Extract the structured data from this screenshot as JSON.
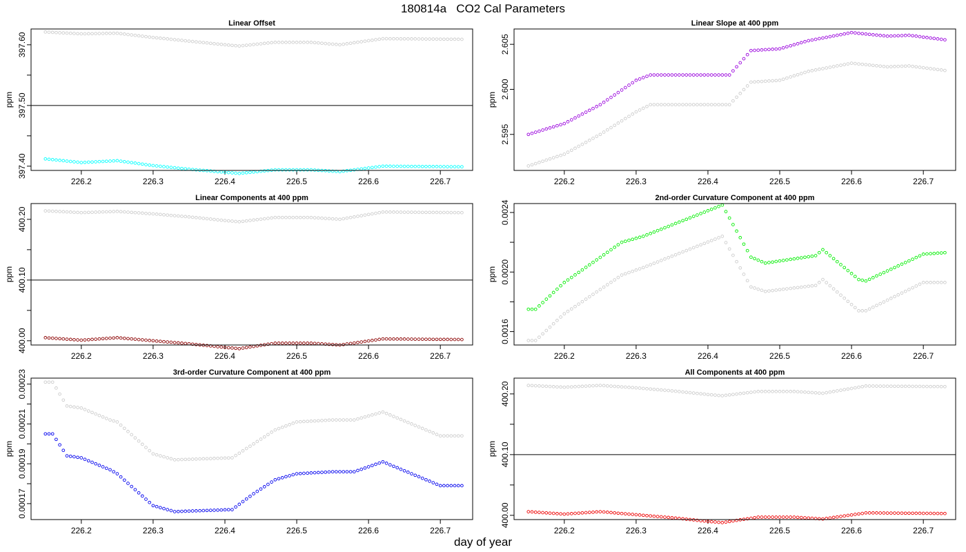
{
  "figure": {
    "title": "180814a   CO2 Cal Parameters",
    "xlabel": "day of year"
  },
  "chart_data": [
    {
      "type": "scatter",
      "title": "Linear Offset",
      "xlabel": "",
      "ylabel": "ppm",
      "xlim": [
        226.13,
        226.745
      ],
      "ylim": [
        397.393,
        397.626
      ],
      "xticks": [
        "226.2",
        "226.3",
        "226.4",
        "226.5",
        "226.6",
        "226.7"
      ],
      "yticks": [
        397.4,
        397.45,
        397.5,
        397.55,
        397.6
      ],
      "yticklabels": [
        "397.40",
        "",
        "397.50",
        "",
        "397.60"
      ],
      "hline": 397.5,
      "series": [
        {
          "color": "#cccccc",
          "x": [
            226.15,
            226.2,
            226.25,
            226.3,
            226.35,
            226.4,
            226.42,
            226.47,
            226.52,
            226.56,
            226.62,
            226.73
          ],
          "y": [
            397.621,
            397.618,
            397.619,
            397.612,
            397.606,
            397.6,
            397.598,
            397.604,
            397.604,
            397.6,
            397.61,
            397.609
          ]
        },
        {
          "color": "#00ffff",
          "x": [
            226.15,
            226.2,
            226.25,
            226.3,
            226.35,
            226.4,
            226.42,
            226.47,
            226.52,
            226.56,
            226.62,
            226.73
          ],
          "y": [
            397.412,
            397.406,
            397.409,
            397.401,
            397.395,
            397.39,
            397.388,
            397.394,
            397.394,
            397.391,
            397.4,
            397.399
          ]
        }
      ]
    },
    {
      "type": "scatter",
      "title": "Linear Slope at 400 ppm",
      "xlabel": "",
      "ylabel": "ppm",
      "xlim": [
        226.13,
        226.745
      ],
      "ylim": [
        2.591,
        2.6067
      ],
      "xticks": [
        "226.2",
        "226.3",
        "226.4",
        "226.5",
        "226.6",
        "226.7"
      ],
      "yticks": [
        2.595,
        2.6,
        2.605
      ],
      "yticklabels": [
        "2.595",
        "2.600",
        "2.605"
      ],
      "series": [
        {
          "color": "#cccccc",
          "x": [
            226.15,
            226.2,
            226.25,
            226.3,
            226.32,
            226.43,
            226.46,
            226.5,
            226.54,
            226.6,
            226.65,
            226.68,
            226.73
          ],
          "y": [
            2.5915,
            2.5928,
            2.595,
            2.5975,
            2.5983,
            2.5983,
            2.6008,
            2.601,
            2.602,
            2.6029,
            2.6025,
            2.6026,
            2.6021
          ]
        },
        {
          "color": "#9900dd",
          "x": [
            226.15,
            226.2,
            226.25,
            226.3,
            226.32,
            226.43,
            226.46,
            226.5,
            226.54,
            226.6,
            226.65,
            226.68,
            226.73
          ],
          "y": [
            2.595,
            2.5962,
            2.5983,
            2.601,
            2.6016,
            2.6016,
            2.6043,
            2.6045,
            2.6054,
            2.6063,
            2.6059,
            2.606,
            2.6055
          ]
        }
      ]
    },
    {
      "type": "scatter",
      "title": "Linear Components at 400 ppm",
      "xlabel": "",
      "ylabel": "ppm",
      "xlim": [
        226.13,
        226.745
      ],
      "ylim": [
        399.993,
        400.226
      ],
      "xticks": [
        "226.2",
        "226.3",
        "226.4",
        "226.5",
        "226.6",
        "226.7"
      ],
      "yticks": [
        400.0,
        400.05,
        400.1,
        400.15,
        400.2
      ],
      "yticklabels": [
        "400.00",
        "",
        "400.10",
        "",
        "400.20"
      ],
      "hline": 400.1,
      "series": [
        {
          "color": "#cccccc",
          "x": [
            226.15,
            226.2,
            226.25,
            226.3,
            226.35,
            226.4,
            226.42,
            226.47,
            226.52,
            226.56,
            226.62,
            226.73
          ],
          "y": [
            400.214,
            400.211,
            400.213,
            400.209,
            400.204,
            400.198,
            400.196,
            400.203,
            400.203,
            400.2,
            400.212,
            400.211
          ]
        },
        {
          "color": "#8b0000",
          "x": [
            226.15,
            226.2,
            226.25,
            226.3,
            226.35,
            226.4,
            226.42,
            226.47,
            226.52,
            226.56,
            226.62,
            226.73
          ],
          "y": [
            400.005,
            400.001,
            400.005,
            400.0,
            399.995,
            399.989,
            399.987,
            399.996,
            399.996,
            399.993,
            400.003,
            400.002
          ]
        }
      ]
    },
    {
      "type": "scatter",
      "title": "2nd-order Curvature Component at 400 ppm",
      "xlabel": "",
      "ylabel": "ppm",
      "xlim": [
        226.13,
        226.745
      ],
      "ylim": [
        0.00151,
        0.00246
      ],
      "xticks": [
        "226.2",
        "226.3",
        "226.4",
        "226.5",
        "226.6",
        "226.7"
      ],
      "yticks": [
        0.0016,
        0.0018,
        0.002,
        0.0022,
        0.0024
      ],
      "yticklabels": [
        "0.0016",
        "",
        "0.0020",
        "",
        "0.0024"
      ],
      "series": [
        {
          "color": "#cccccc",
          "x": [
            226.15,
            226.16,
            226.2,
            226.28,
            226.31,
            226.42,
            226.46,
            226.48,
            226.55,
            226.56,
            226.61,
            226.62,
            226.7,
            226.73
          ],
          "y": [
            0.00154,
            0.00154,
            0.00172,
            0.00198,
            0.00203,
            0.00224,
            0.0019,
            0.00187,
            0.00191,
            0.00195,
            0.00174,
            0.00174,
            0.00193,
            0.00193
          ]
        },
        {
          "color": "#00ee00",
          "x": [
            226.15,
            226.16,
            226.2,
            226.28,
            226.31,
            226.42,
            226.46,
            226.48,
            226.55,
            226.56,
            226.61,
            226.62,
            226.7,
            226.73
          ],
          "y": [
            0.00175,
            0.00175,
            0.00193,
            0.0022,
            0.00224,
            0.00245,
            0.0021,
            0.00206,
            0.00211,
            0.00215,
            0.00195,
            0.00194,
            0.00212,
            0.00213
          ]
        }
      ]
    },
    {
      "type": "scatter",
      "title": "3rd-order Curvature Component at 400 ppm",
      "xlabel": "",
      "ylabel": "ppm",
      "xlim": [
        226.13,
        226.745
      ],
      "ylim": [
        0.000162,
        0.000233
      ],
      "xticks": [
        "226.2",
        "226.3",
        "226.4",
        "226.5",
        "226.6",
        "226.7"
      ],
      "yticks": [
        0.00017,
        0.00018,
        0.00019,
        0.0002,
        0.00021,
        0.00022,
        0.00023
      ],
      "yticklabels": [
        "0.00017",
        "",
        "0.00019",
        "",
        "0.00021",
        "",
        "0.00023"
      ],
      "series": [
        {
          "color": "#cccccc",
          "x": [
            226.15,
            226.16,
            226.18,
            226.2,
            226.24,
            226.25,
            226.3,
            226.33,
            226.41,
            226.44,
            226.47,
            226.5,
            226.55,
            226.56,
            226.58,
            226.62,
            226.7,
            226.73
          ],
          "y": [
            0.000231,
            0.000231,
            0.000219,
            0.000218,
            0.000212,
            0.000211,
            0.000195,
            0.000192,
            0.000193,
            0.0002,
            0.000207,
            0.000211,
            0.000212,
            0.000212,
            0.000212,
            0.000216,
            0.000204,
            0.000204
          ]
        },
        {
          "color": "#0000ee",
          "x": [
            226.15,
            226.16,
            226.18,
            226.2,
            226.24,
            226.25,
            226.3,
            226.33,
            226.41,
            226.44,
            226.47,
            226.5,
            226.55,
            226.56,
            226.58,
            226.62,
            226.7,
            226.73
          ],
          "y": [
            0.000205,
            0.000205,
            0.000194,
            0.000193,
            0.000187,
            0.000185,
            0.000169,
            0.000166,
            0.000167,
            0.000175,
            0.000182,
            0.000185,
            0.000186,
            0.000186,
            0.000186,
            0.000191,
            0.000179,
            0.000179
          ]
        }
      ]
    },
    {
      "type": "scatter",
      "title": "All Components at 400 ppm",
      "xlabel": "",
      "ylabel": "ppm",
      "xlim": [
        226.13,
        226.745
      ],
      "ylim": [
        399.993,
        400.226
      ],
      "xticks": [
        "226.2",
        "226.3",
        "226.4",
        "226.5",
        "226.6",
        "226.7"
      ],
      "yticks": [
        400.0,
        400.05,
        400.1,
        400.15,
        400.2
      ],
      "yticklabels": [
        "400.00",
        "",
        "400.10",
        "",
        "400.20"
      ],
      "hline": 400.1,
      "series": [
        {
          "color": "#cccccc",
          "x": [
            226.15,
            226.2,
            226.25,
            226.3,
            226.35,
            226.4,
            226.42,
            226.47,
            226.52,
            226.56,
            226.62,
            226.73
          ],
          "y": [
            400.214,
            400.211,
            400.214,
            400.21,
            400.205,
            400.199,
            400.197,
            400.204,
            400.204,
            400.201,
            400.213,
            400.212
          ]
        },
        {
          "color": "#ee0000",
          "x": [
            226.15,
            226.2,
            226.25,
            226.3,
            226.35,
            226.4,
            226.42,
            226.47,
            226.52,
            226.56,
            226.62,
            226.73
          ],
          "y": [
            400.006,
            400.002,
            400.006,
            400.001,
            399.996,
            399.99,
            399.988,
            399.997,
            399.997,
            399.994,
            400.004,
            400.003
          ]
        }
      ]
    }
  ]
}
